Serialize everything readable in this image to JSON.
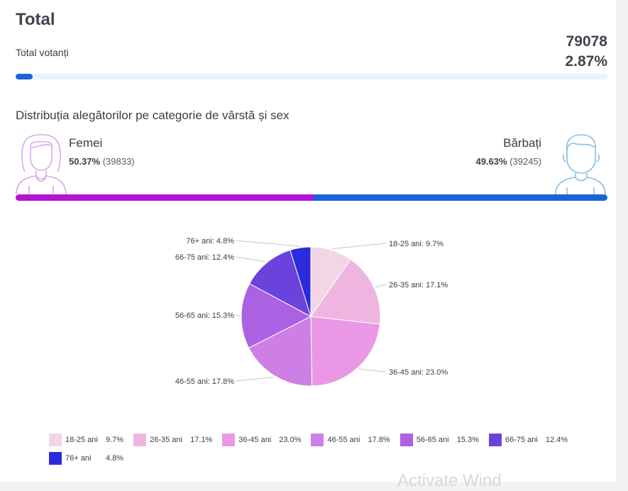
{
  "total": {
    "title": "Total",
    "votanti_label": "Total votanți",
    "count": "79078",
    "percent": "2.87%",
    "progress_fraction": 0.0287
  },
  "distribution": {
    "title": "Distribuția alegătorilor pe categorie de vârstă și sex",
    "women": {
      "label": "Femei",
      "percent": "50.37%",
      "count": "(39833)",
      "share": 50.37
    },
    "men": {
      "label": "Bărbați",
      "percent": "49.63%",
      "count": "(39245)",
      "share": 49.63
    }
  },
  "chart_data": {
    "type": "pie",
    "categories": [
      "18-25 ani",
      "26-35 ani",
      "36-45 ani",
      "46-55 ani",
      "56-65 ani",
      "66-75 ani",
      "76+ ani"
    ],
    "values": [
      9.7,
      17.1,
      23.0,
      17.8,
      15.3,
      12.4,
      4.8
    ],
    "value_labels": [
      "9.7%",
      "17.1%",
      "23.0%",
      "17.8%",
      "15.3%",
      "12.4%",
      "4.8%"
    ],
    "slice_labels": [
      "18-25 ani: 9.7%",
      "26-35 ani: 17.1%",
      "36-45 ani: 23.0%",
      "46-55 ani: 17.8%",
      "56-65 ani: 15.3%",
      "66-75 ani: 12.4%",
      "76+ ani: 4.8%"
    ],
    "colors": [
      "#f3d5e5",
      "#efb5e0",
      "#ea98e6",
      "#cd7fe4",
      "#ab61e2",
      "#6b43dc",
      "#2c2bdb"
    ],
    "legend_position": "bottom"
  },
  "colors": {
    "women": "#b214d2",
    "men": "#1a63db",
    "progress": "#1a63db"
  },
  "watermark": "Activate Wind"
}
